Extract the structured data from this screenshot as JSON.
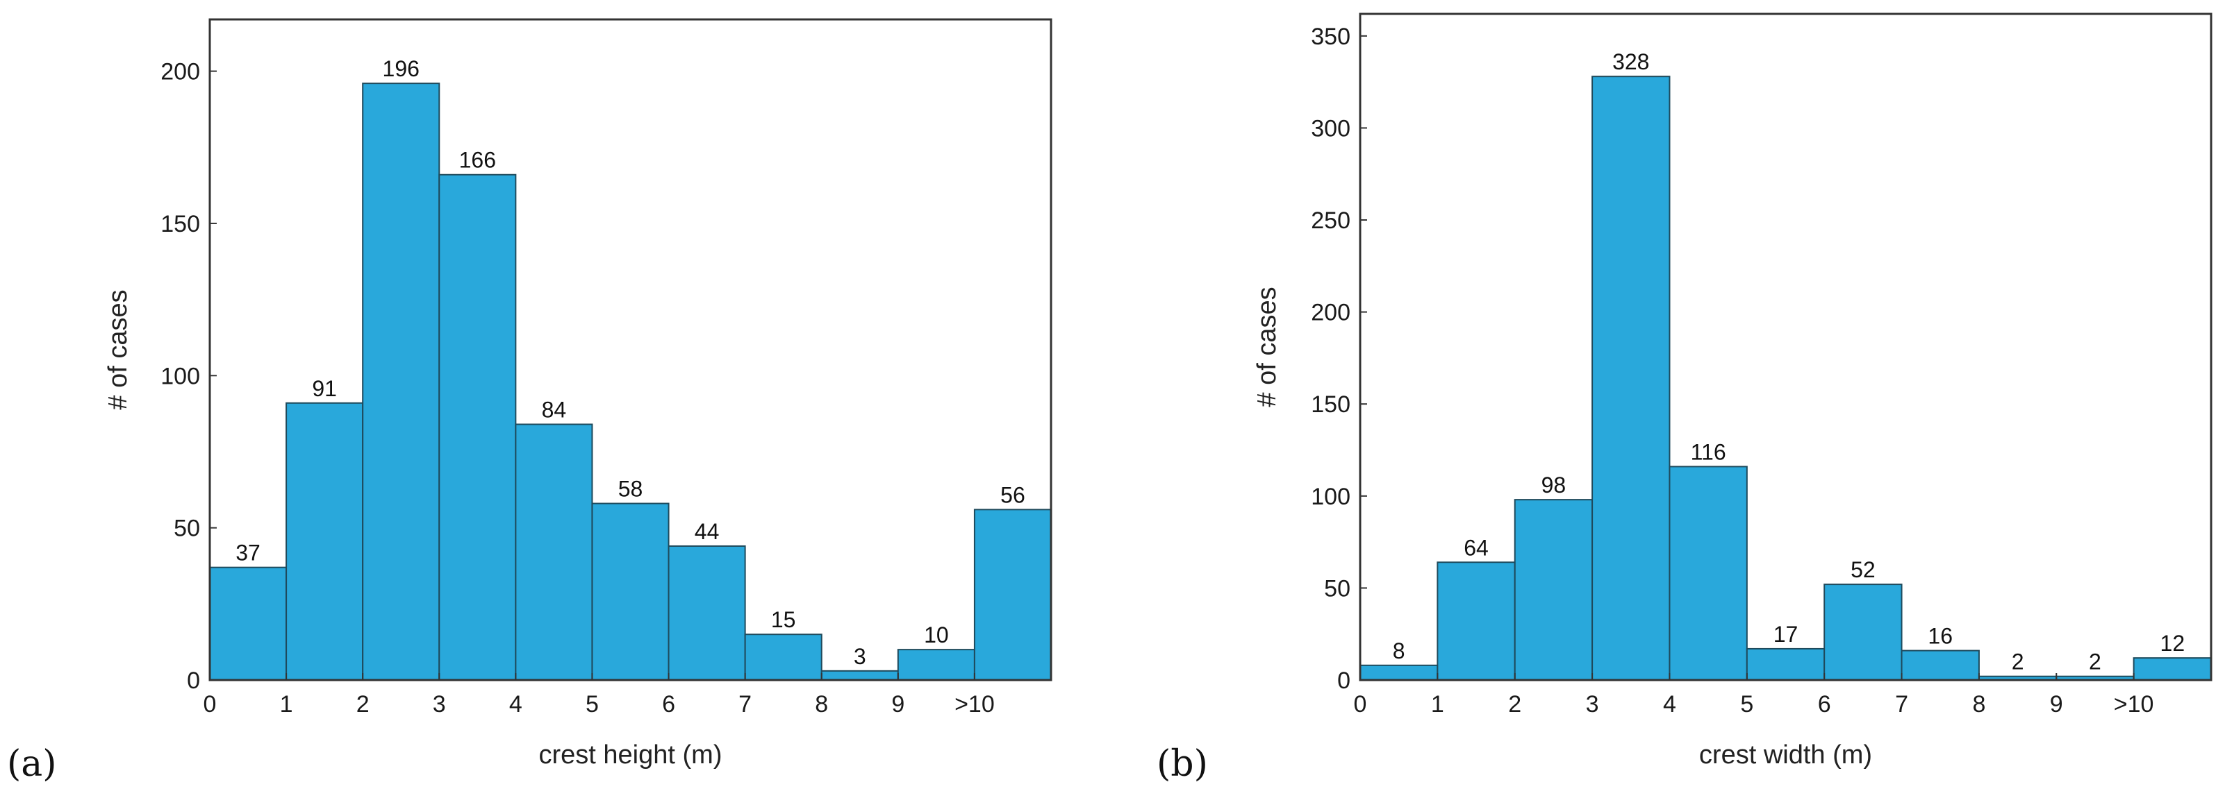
{
  "colors": {
    "bar": "#29a8db"
  },
  "chart_data": [
    {
      "panel": "(a)",
      "type": "bar",
      "categories": [
        "0-1",
        "1-2",
        "2-3",
        "3-4",
        "4-5",
        "5-6",
        "6-7",
        "7-8",
        "8-9",
        "9-10",
        ">10"
      ],
      "values": [
        37,
        91,
        196,
        166,
        84,
        58,
        44,
        15,
        3,
        10,
        56
      ],
      "bar_labels": [
        "37",
        "91",
        "196",
        "166",
        "84",
        "58",
        "44",
        "15",
        "3",
        "10",
        "56"
      ],
      "xtick_labels": [
        "0",
        "1",
        "2",
        "3",
        "4",
        "5",
        "6",
        "7",
        "8",
        "9",
        ">10"
      ],
      "yticks": [
        0,
        50,
        100,
        150,
        200
      ],
      "ytick_labels": [
        "0",
        "50",
        "100",
        "150",
        "200"
      ],
      "ylim": [
        0,
        217
      ],
      "xlabel": "crest height (m)",
      "ylabel": "# of cases",
      "title": ""
    },
    {
      "panel": "(b)",
      "type": "bar",
      "categories": [
        "0-1",
        "1-2",
        "2-3",
        "3-4",
        "4-5",
        "5-6",
        "6-7",
        "7-8",
        "8-9",
        "9-10",
        ">10"
      ],
      "values": [
        8,
        64,
        98,
        328,
        116,
        17,
        52,
        16,
        2,
        2,
        12
      ],
      "bar_labels": [
        "8",
        "64",
        "98",
        "328",
        "116",
        "17",
        "52",
        "16",
        "2",
        "2",
        "12"
      ],
      "xtick_labels": [
        "0",
        "1",
        "2",
        "3",
        "4",
        "5",
        "6",
        "7",
        "8",
        "9",
        ">10"
      ],
      "yticks": [
        0,
        50,
        100,
        150,
        200,
        250,
        300,
        350
      ],
      "ytick_labels": [
        "0",
        "50",
        "100",
        "150",
        "200",
        "250",
        "300",
        "350"
      ],
      "ylim": [
        0,
        362
      ],
      "xlabel": "crest width (m)",
      "ylabel": "# of cases",
      "title": ""
    }
  ]
}
